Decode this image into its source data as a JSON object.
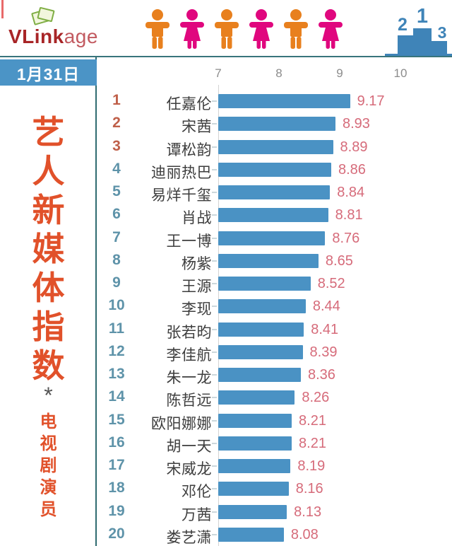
{
  "header": {
    "logo": {
      "bold": "VLink",
      "light": "age"
    },
    "people_icons": [
      "male",
      "female",
      "male",
      "female",
      "male",
      "female"
    ],
    "podium": {
      "first": "1",
      "second": "2",
      "third": "3"
    }
  },
  "sidebar": {
    "date": "1月31日",
    "title": "艺人新媒体指数",
    "star": "*",
    "subtitle": "电视剧演员"
  },
  "chart_data": {
    "type": "bar",
    "orientation": "horizontal",
    "title": "艺人新媒体指数 * 电视剧演员 (1月31日)",
    "xlabel": "",
    "ylabel": "",
    "xlim": [
      7,
      10
    ],
    "x_ticks": [
      7,
      8,
      9,
      10
    ],
    "grid": false,
    "legend": "none",
    "ranks": [
      1,
      2,
      3,
      4,
      5,
      6,
      7,
      8,
      9,
      10,
      11,
      12,
      13,
      14,
      15,
      16,
      17,
      18,
      19,
      20
    ],
    "categories": [
      "任嘉伦",
      "宋茜",
      "谭松韵",
      "迪丽热巴",
      "易烊千玺",
      "肖战",
      "王一博",
      "杨紫",
      "王源",
      "李现",
      "张若昀",
      "李佳航",
      "朱一龙",
      "陈哲远",
      "欧阳娜娜",
      "胡一天",
      "宋威龙",
      "邓伦",
      "万茜",
      "娄艺潇"
    ],
    "values": [
      9.17,
      8.93,
      8.89,
      8.86,
      8.84,
      8.81,
      8.76,
      8.65,
      8.52,
      8.44,
      8.41,
      8.39,
      8.36,
      8.26,
      8.21,
      8.21,
      8.19,
      8.16,
      8.13,
      8.08
    ]
  },
  "colors": {
    "bar": "#4a92c4",
    "value_label": "#d66b7a",
    "rank_top3": "#bf5f49",
    "rank_rest": "#5e93a9",
    "date_badge_bg": "#4b94c6",
    "sidebar_title": "#e1512a",
    "divider": "#38747c",
    "male_icon": "#e8801e",
    "female_icon": "#e0077e",
    "podium": "#3f84b8",
    "logo_red": "#a82527"
  }
}
